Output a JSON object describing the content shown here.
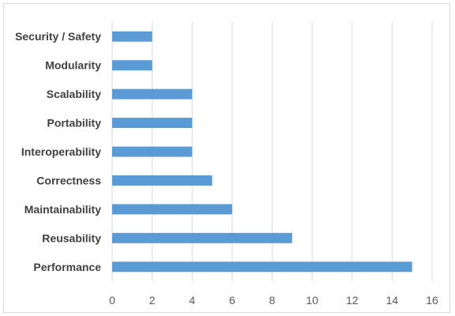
{
  "chart_data": {
    "type": "bar",
    "orientation": "horizontal",
    "title": "",
    "xlabel": "",
    "ylabel": "",
    "categories": [
      "Security / Safety",
      "Modularity",
      "Scalability",
      "Portability",
      "Interoperability",
      "Correctness",
      "Maintainability",
      "Reusability",
      "Performance"
    ],
    "values": [
      2,
      2,
      4,
      4,
      4,
      5,
      6,
      9,
      15
    ],
    "xlim": [
      0,
      16
    ],
    "x_ticks": [
      "0",
      "2",
      "4",
      "6",
      "8",
      "10",
      "12",
      "14",
      "16"
    ],
    "grid": "vertical",
    "legend": "none",
    "bar_color": "#5b9bd5",
    "grid_color": "#d9d9d9"
  }
}
